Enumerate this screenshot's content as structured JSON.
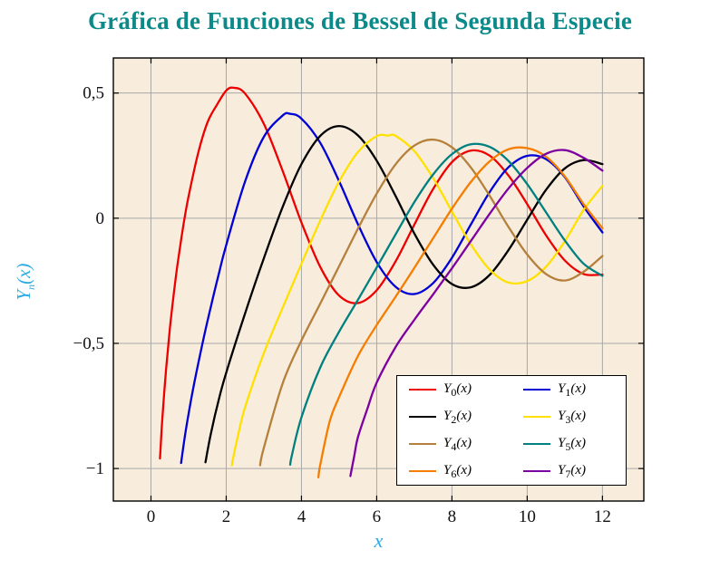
{
  "colors": {
    "title": "#0c8989",
    "axis_label": "#2aabe2",
    "plot_bg": "#f8ecdc",
    "grid": "#a8a8a8",
    "frame": "#000000",
    "legend_bg": "#ffffff"
  },
  "chart_data": {
    "type": "line",
    "title": "Gráfica de Funciones de Bessel de Segunda Especie",
    "xlabel": "x",
    "ylabel": "Y_n(x)",
    "ylabel_parts": {
      "sym": "Y",
      "sub": "n",
      "arg": "(x)"
    },
    "xlim": [
      -1,
      13.1
    ],
    "ylim": [
      -1.13,
      0.64
    ],
    "grid": true,
    "legend_position": "south east",
    "x_ticks": [
      {
        "v": 0,
        "label": "0"
      },
      {
        "v": 2,
        "label": "2"
      },
      {
        "v": 4,
        "label": "4"
      },
      {
        "v": 6,
        "label": "6"
      },
      {
        "v": 8,
        "label": "8"
      },
      {
        "v": 10,
        "label": "10"
      },
      {
        "v": 12,
        "label": "12"
      }
    ],
    "y_ticks": [
      {
        "v": 0.5,
        "label": "0,5"
      },
      {
        "v": 0,
        "label": "0"
      },
      {
        "v": -0.5,
        "label": "−0,5"
      },
      {
        "v": -1,
        "label": "−1"
      }
    ],
    "series": [
      {
        "name": "Y_0(x)",
        "sym": "Y",
        "order": "0",
        "arg": "(x)",
        "color": "#ed0000",
        "points": [
          [
            0.24,
            -0.96
          ],
          [
            0.3,
            -0.807
          ],
          [
            0.4,
            -0.606
          ],
          [
            0.5,
            -0.445
          ],
          [
            0.6,
            -0.309
          ],
          [
            0.7,
            -0.191
          ],
          [
            0.8,
            -0.087
          ],
          [
            0.9,
            0.006
          ],
          [
            1,
            0.088
          ],
          [
            1.25,
            0.258
          ],
          [
            1.5,
            0.382
          ],
          [
            1.75,
            0.452
          ],
          [
            2,
            0.51
          ],
          [
            2.2,
            0.521
          ],
          [
            2.5,
            0.498
          ],
          [
            3,
            0.377
          ],
          [
            3.5,
            0.189
          ],
          [
            4,
            -0.017
          ],
          [
            4.5,
            -0.195
          ],
          [
            5,
            -0.309
          ],
          [
            5.5,
            -0.339
          ],
          [
            6,
            -0.288
          ],
          [
            6.5,
            -0.173
          ],
          [
            7,
            -0.026
          ],
          [
            7.5,
            0.117
          ],
          [
            8,
            0.224
          ],
          [
            8.5,
            0.27
          ],
          [
            9,
            0.25
          ],
          [
            9.5,
            0.171
          ],
          [
            10,
            0.056
          ],
          [
            10.5,
            -0.068
          ],
          [
            11,
            -0.169
          ],
          [
            11.5,
            -0.223
          ],
          [
            12,
            -0.225
          ]
        ]
      },
      {
        "name": "Y_1(x)",
        "sym": "Y",
        "order": "1",
        "arg": "(x)",
        "color": "#0000d5",
        "points": [
          [
            0.8,
            -0.978
          ],
          [
            0.9,
            -0.873
          ],
          [
            1,
            -0.781
          ],
          [
            1.1,
            -0.698
          ],
          [
            1.2,
            -0.621
          ],
          [
            1.4,
            -0.479
          ],
          [
            1.6,
            -0.348
          ],
          [
            1.8,
            -0.224
          ],
          [
            2,
            -0.107
          ],
          [
            2.5,
            0.146
          ],
          [
            3,
            0.325
          ],
          [
            3.5,
            0.41
          ],
          [
            3.7,
            0.417
          ],
          [
            4,
            0.398
          ],
          [
            4.5,
            0.301
          ],
          [
            5,
            0.148
          ],
          [
            5.5,
            -0.024
          ],
          [
            6,
            -0.175
          ],
          [
            6.5,
            -0.274
          ],
          [
            7,
            -0.303
          ],
          [
            7.5,
            -0.259
          ],
          [
            8,
            -0.158
          ],
          [
            8.5,
            -0.026
          ],
          [
            9,
            0.104
          ],
          [
            9.5,
            0.203
          ],
          [
            10,
            0.249
          ],
          [
            10.5,
            0.236
          ],
          [
            11,
            0.164
          ],
          [
            11.5,
            0.047
          ],
          [
            12,
            -0.057
          ]
        ]
      },
      {
        "name": "Y_2(x)",
        "sym": "Y",
        "order": "2",
        "arg": "(x)",
        "color": "#000000",
        "points": [
          [
            1.45,
            -0.975
          ],
          [
            1.5,
            -0.932
          ],
          [
            1.6,
            -0.855
          ],
          [
            1.8,
            -0.726
          ],
          [
            2,
            -0.617
          ],
          [
            2.5,
            -0.381
          ],
          [
            3,
            -0.16
          ],
          [
            3.5,
            0.045
          ],
          [
            4,
            0.216
          ],
          [
            4.5,
            0.329
          ],
          [
            5,
            0.368
          ],
          [
            5.5,
            0.331
          ],
          [
            6,
            0.23
          ],
          [
            6.5,
            0.089
          ],
          [
            7,
            -0.061
          ],
          [
            7.5,
            -0.186
          ],
          [
            8,
            -0.263
          ],
          [
            8.5,
            -0.276
          ],
          [
            9,
            -0.227
          ],
          [
            9.5,
            -0.128
          ],
          [
            10,
            -0.006
          ],
          [
            10.5,
            0.113
          ],
          [
            11,
            0.199
          ],
          [
            11.5,
            0.232
          ],
          [
            12,
            0.216
          ]
        ]
      },
      {
        "name": "Y_3(x)",
        "sym": "Y",
        "order": "3",
        "arg": "(x)",
        "color": "#ffe100",
        "points": [
          [
            2.15,
            -0.987
          ],
          [
            2.2,
            -0.946
          ],
          [
            2.3,
            -0.878
          ],
          [
            2.5,
            -0.756
          ],
          [
            3,
            -0.539
          ],
          [
            3.5,
            -0.358
          ],
          [
            4,
            -0.182
          ],
          [
            4.5,
            -0.009
          ],
          [
            5,
            0.146
          ],
          [
            5.5,
            0.264
          ],
          [
            6,
            0.328
          ],
          [
            6.3,
            0.33
          ],
          [
            6.5,
            0.329
          ],
          [
            7,
            0.268
          ],
          [
            7.5,
            0.16
          ],
          [
            8,
            0.027
          ],
          [
            8.5,
            -0.104
          ],
          [
            9,
            -0.205
          ],
          [
            9.5,
            -0.257
          ],
          [
            10,
            -0.251
          ],
          [
            10.5,
            -0.194
          ],
          [
            11,
            -0.092
          ],
          [
            11.5,
            0.033
          ],
          [
            12,
            0.129
          ]
        ]
      },
      {
        "name": "Y_4(x)",
        "sym": "Y",
        "order": "4",
        "arg": "(x)",
        "color": "#b5803c",
        "points": [
          [
            2.9,
            -0.987
          ],
          [
            3,
            -0.917
          ],
          [
            3.5,
            -0.66
          ],
          [
            4,
            -0.489
          ],
          [
            4.5,
            -0.341
          ],
          [
            5,
            -0.192
          ],
          [
            5.5,
            -0.042
          ],
          [
            6,
            0.098
          ],
          [
            6.5,
            0.215
          ],
          [
            7,
            0.29
          ],
          [
            7.5,
            0.314
          ],
          [
            8,
            0.283
          ],
          [
            8.5,
            0.203
          ],
          [
            9,
            0.09
          ],
          [
            9.5,
            -0.034
          ],
          [
            10,
            -0.145
          ],
          [
            10.5,
            -0.223
          ],
          [
            11,
            -0.249
          ],
          [
            11.5,
            -0.214
          ],
          [
            12,
            -0.151
          ]
        ]
      },
      {
        "name": "Y_5(x)",
        "sym": "Y",
        "order": "5",
        "arg": "(x)",
        "color": "#008080",
        "points": [
          [
            3.7,
            -0.985
          ],
          [
            3.75,
            -0.944
          ],
          [
            4,
            -0.796
          ],
          [
            4.5,
            -0.596
          ],
          [
            5,
            -0.454
          ],
          [
            5.5,
            -0.326
          ],
          [
            6,
            -0.197
          ],
          [
            6.5,
            -0.065
          ],
          [
            7,
            0.064
          ],
          [
            7.5,
            0.175
          ],
          [
            8,
            0.256
          ],
          [
            8.5,
            0.295
          ],
          [
            9,
            0.285
          ],
          [
            9.5,
            0.229
          ],
          [
            10,
            0.136
          ],
          [
            10.5,
            0.024
          ],
          [
            11,
            -0.089
          ],
          [
            11.5,
            -0.182
          ],
          [
            12,
            -0.23
          ]
        ]
      },
      {
        "name": "Y_6(x)",
        "sym": "Y",
        "order": "6",
        "arg": "(x)",
        "color": "#f57d00",
        "points": [
          [
            4.45,
            -1.035
          ],
          [
            4.5,
            -0.985
          ],
          [
            4.75,
            -0.812
          ],
          [
            5,
            -0.715
          ],
          [
            5.5,
            -0.551
          ],
          [
            6,
            -0.427
          ],
          [
            6.5,
            -0.314
          ],
          [
            7,
            -0.199
          ],
          [
            7.5,
            -0.08
          ],
          [
            8,
            0.038
          ],
          [
            8.5,
            0.144
          ],
          [
            9,
            0.227
          ],
          [
            9.5,
            0.275
          ],
          [
            10,
            0.28
          ],
          [
            10.5,
            0.246
          ],
          [
            11,
            0.167
          ],
          [
            11.5,
            0.056
          ],
          [
            12,
            -0.04
          ]
        ]
      },
      {
        "name": "Y_7(x)",
        "sym": "Y",
        "order": "7",
        "arg": "(x)",
        "color": "#7d00a0",
        "points": [
          [
            5.3,
            -1.03
          ],
          [
            5.4,
            -0.953
          ],
          [
            5.5,
            -0.875
          ],
          [
            5.75,
            -0.762
          ],
          [
            6,
            -0.657
          ],
          [
            6.5,
            -0.515
          ],
          [
            7,
            -0.406
          ],
          [
            7.5,
            -0.304
          ],
          [
            8,
            -0.2
          ],
          [
            8.5,
            -0.092
          ],
          [
            9,
            0.017
          ],
          [
            9.5,
            0.118
          ],
          [
            10,
            0.201
          ],
          [
            10.5,
            0.257
          ],
          [
            11,
            0.272
          ],
          [
            11.5,
            0.241
          ],
          [
            12,
            0.19
          ]
        ]
      }
    ]
  }
}
